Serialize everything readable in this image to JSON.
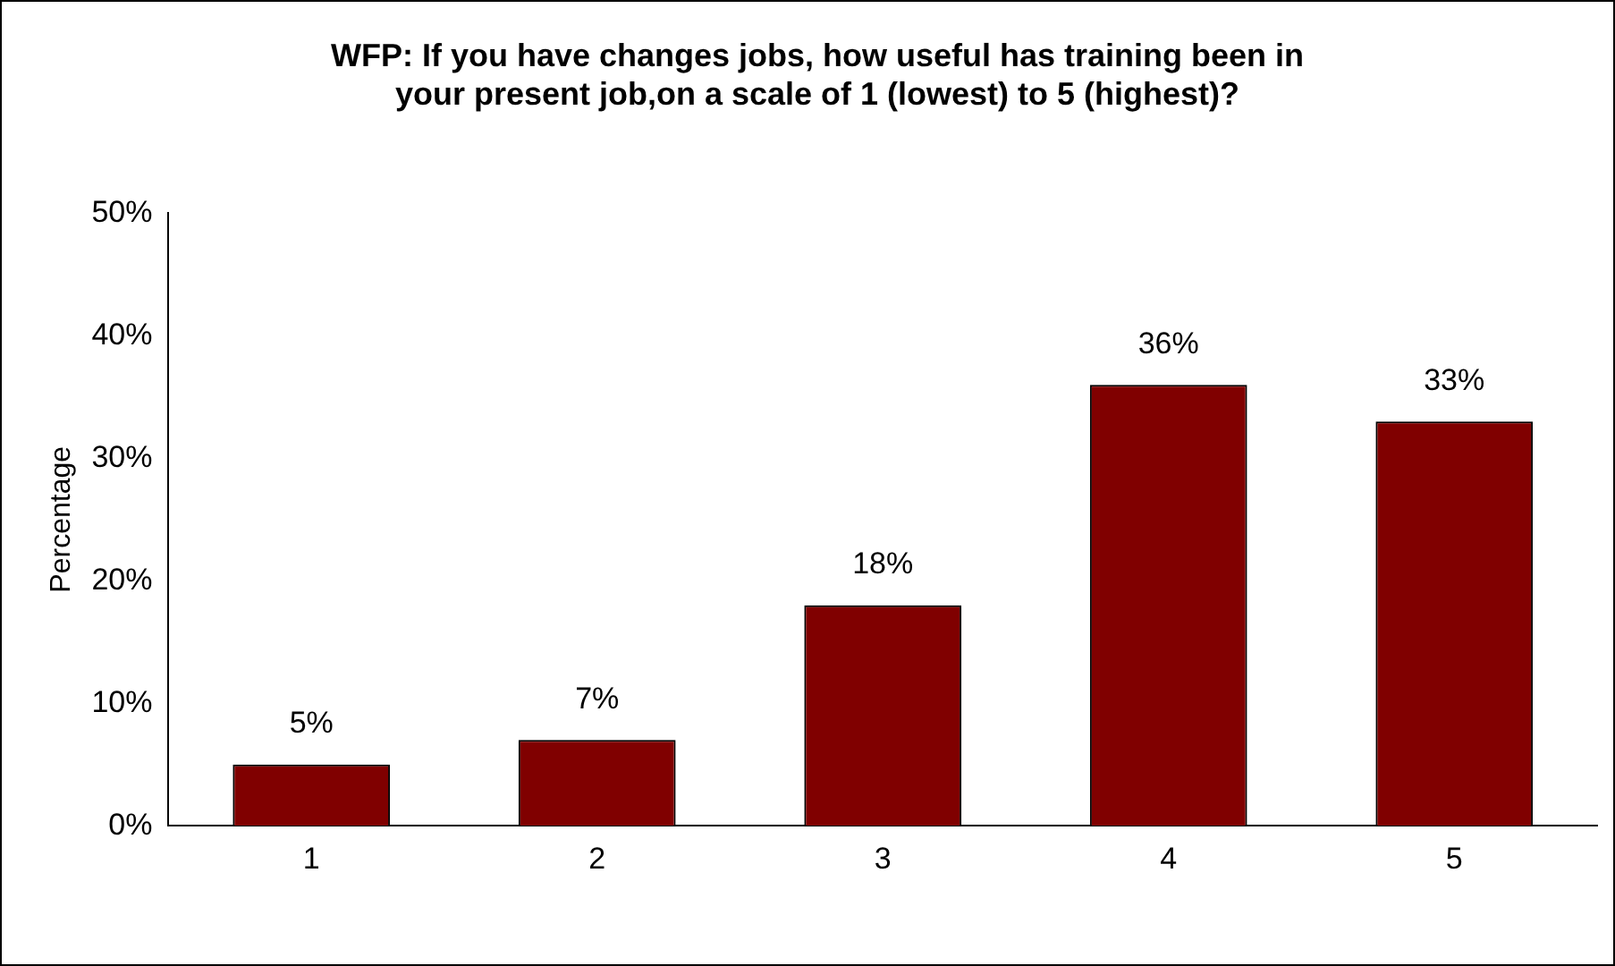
{
  "chart_data": {
    "type": "bar",
    "title": "WFP: If you have changes jobs, how useful has training been in\nyour present job,on a scale of 1 (lowest) to 5 (highest)?",
    "ylabel": "Percentage",
    "categories": [
      "1",
      "2",
      "3",
      "4",
      "5"
    ],
    "values": [
      5,
      7,
      18,
      36,
      33
    ],
    "value_labels": [
      "5%",
      "7%",
      "18%",
      "36%",
      "33%"
    ],
    "color": "#800000",
    "ylim": [
      0,
      50
    ],
    "yticks": [
      {
        "value": 0,
        "label": "0%"
      },
      {
        "value": 10,
        "label": "10%"
      },
      {
        "value": 20,
        "label": "20%"
      },
      {
        "value": 30,
        "label": "30%"
      },
      {
        "value": 40,
        "label": "40%"
      },
      {
        "value": 50,
        "label": "50%"
      }
    ],
    "grid": false,
    "legend": false
  }
}
